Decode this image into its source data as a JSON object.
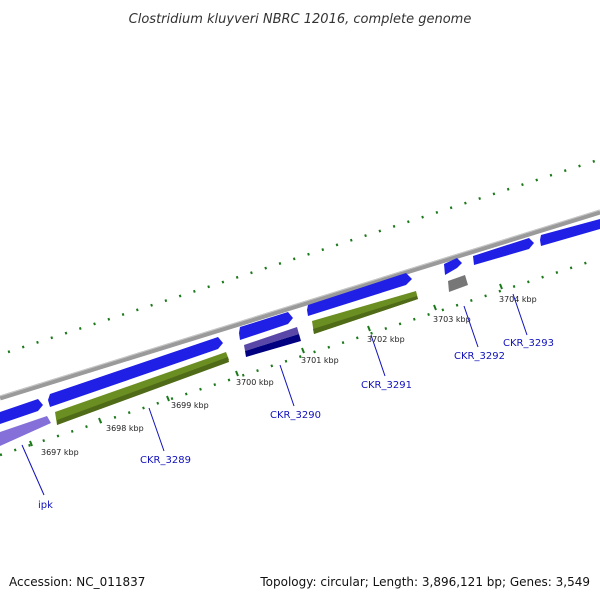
{
  "title": "Clostridium kluyveri NBRC 12016, complete genome",
  "footer": {
    "accession": "Accession: NC_011837",
    "summary": "Topology: circular; Length: 3,896,121 bp; Genes: 3,549"
  },
  "ticks": [
    "3697 kbp",
    "3698 kbp",
    "3699 kbp",
    "3700 kbp",
    "3701 kbp",
    "3702 kbp",
    "3703 kbp",
    "3704 kbp"
  ],
  "genes": [
    "ipk",
    "CKR_3289",
    "CKR_3290",
    "CKR_3291",
    "CKR_3292",
    "CKR_3293"
  ],
  "colors": {
    "backbone": "#9a9a9a",
    "forward_cds": "#1f1fe6",
    "ipk_feature": "#8470d8",
    "cds_3289": "#6b8e23",
    "cds_3290_upper": "#5a48a8",
    "cds_3290_lower": "#000080",
    "cds_3291": "#6b8e23",
    "cds_3292": "#777777",
    "ticks": "#1a7a1a",
    "label_line": "#1111bb"
  }
}
